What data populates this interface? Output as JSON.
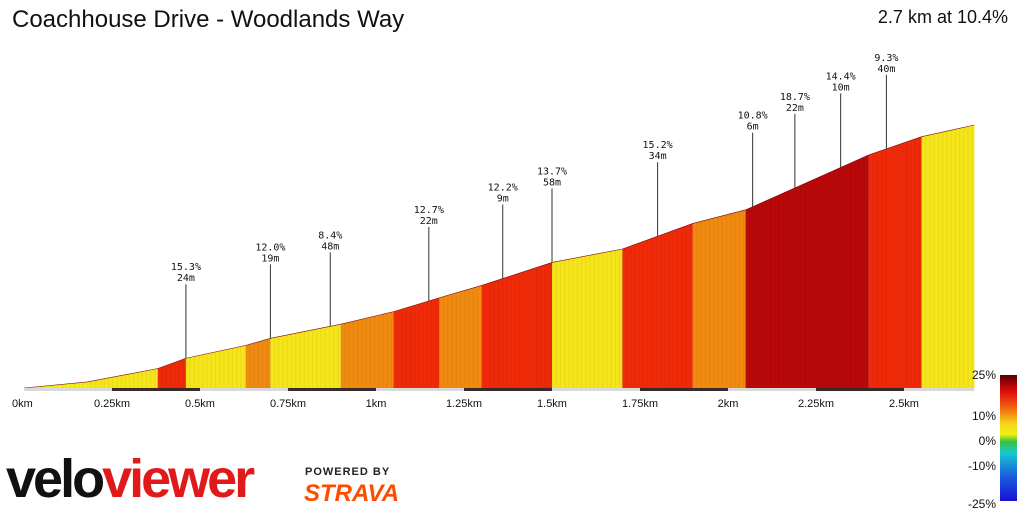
{
  "header": {
    "title": "Coachhouse Drive - Woodlands Way",
    "summary": "2.7 km at 10.4%"
  },
  "brand": {
    "name_part1": "velo",
    "name_part2": "viewer",
    "powered_by": "POWERED BY",
    "partner": "STRAVA"
  },
  "colors": {
    "flat": "#f2f014",
    "yellow": "#f5e51a",
    "orange": "#f08a10",
    "red": "#ef2a08",
    "dark_red": "#b8080a",
    "legend_low": "#1a0fd0"
  },
  "chart_data": {
    "type": "area",
    "title": "Coachhouse Drive - Woodlands Way",
    "xlabel": "",
    "ylabel": "",
    "x_ticks": [
      "0km",
      "0.25km",
      "0.5km",
      "0.75km",
      "1km",
      "1.25km",
      "1.5km",
      "1.75km",
      "2km",
      "2.25km",
      "2.5km"
    ],
    "x_tick_values": [
      0,
      0.25,
      0.5,
      0.75,
      1.0,
      1.25,
      1.5,
      1.75,
      2.0,
      2.25,
      2.5
    ],
    "xlim": [
      0,
      2.7
    ],
    "segments": [
      {
        "start": 0.0,
        "end": 0.18,
        "gradient": 4.0
      },
      {
        "start": 0.18,
        "end": 0.38,
        "gradient": 8.0
      },
      {
        "start": 0.38,
        "end": 0.46,
        "gradient": 15.3
      },
      {
        "start": 0.46,
        "end": 0.63,
        "gradient": 9.0
      },
      {
        "start": 0.63,
        "end": 0.7,
        "gradient": 12.0
      },
      {
        "start": 0.7,
        "end": 0.9,
        "gradient": 8.4
      },
      {
        "start": 0.9,
        "end": 1.05,
        "gradient": 10.0
      },
      {
        "start": 1.05,
        "end": 1.18,
        "gradient": 12.7
      },
      {
        "start": 1.18,
        "end": 1.3,
        "gradient": 12.2
      },
      {
        "start": 1.3,
        "end": 1.5,
        "gradient": 13.7
      },
      {
        "start": 1.5,
        "end": 1.7,
        "gradient": 8.0
      },
      {
        "start": 1.7,
        "end": 1.9,
        "gradient": 15.2
      },
      {
        "start": 1.9,
        "end": 2.05,
        "gradient": 10.8
      },
      {
        "start": 2.05,
        "end": 2.4,
        "gradient": 18.7
      },
      {
        "start": 2.4,
        "end": 2.55,
        "gradient": 14.4
      },
      {
        "start": 2.55,
        "end": 2.7,
        "gradient": 9.3
      }
    ],
    "annotations": [
      {
        "x": 0.46,
        "gradient": "15.3%",
        "length": "24m"
      },
      {
        "x": 0.7,
        "gradient": "12.0%",
        "length": "19m"
      },
      {
        "x": 0.87,
        "gradient": "8.4%",
        "length": "48m"
      },
      {
        "x": 1.15,
        "gradient": "12.7%",
        "length": "22m"
      },
      {
        "x": 1.36,
        "gradient": "12.2%",
        "length": "9m"
      },
      {
        "x": 1.5,
        "gradient": "13.7%",
        "length": "58m"
      },
      {
        "x": 1.8,
        "gradient": "15.2%",
        "length": "34m"
      },
      {
        "x": 2.07,
        "gradient": "10.8%",
        "length": "6m"
      },
      {
        "x": 2.19,
        "gradient": "18.7%",
        "length": "22m"
      },
      {
        "x": 2.32,
        "gradient": "14.4%",
        "length": "10m"
      },
      {
        "x": 2.45,
        "gradient": "9.3%",
        "length": "40m"
      }
    ],
    "legend": {
      "labels": [
        "25%",
        "10%",
        "0%",
        "-10%",
        "-25%"
      ],
      "values": [
        25,
        10,
        0,
        -10,
        -25
      ]
    },
    "grid": false
  }
}
